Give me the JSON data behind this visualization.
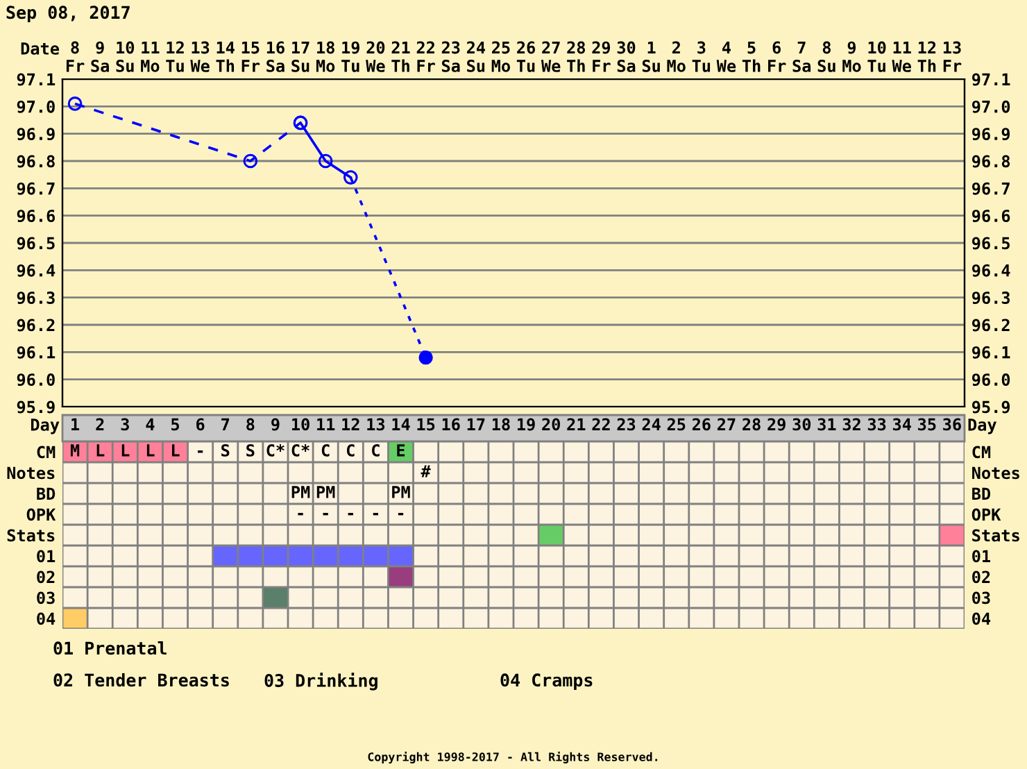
{
  "chart_data": [
    {
      "type": "line",
      "title": "Sep 08, 2017",
      "xlabel": "Date",
      "categories": [
        "8\nFr",
        "9\nSa",
        "10\nSu",
        "11\nMo",
        "12\nTu",
        "13\nWe",
        "14\nTh",
        "15\nFr",
        "16\nSa",
        "17\nSu",
        "18\nMo",
        "19\nTu",
        "20\nWe",
        "21\nTh",
        "22\nFr",
        "23\nSa",
        "24\nSu",
        "25\nMo",
        "26\nTu",
        "27\nWe",
        "28\nTh",
        "29\nFr",
        "30\nSa",
        "1\nSu",
        "2\nMo",
        "3\nTu",
        "4\nWe",
        "5\nTh",
        "6\nFr",
        "7\nSa",
        "8\nSu",
        "9\nMo",
        "10\nTu",
        "11\nWe",
        "12\nTh",
        "13\nFr"
      ],
      "series": [
        {
          "type": "line",
          "color": "#0000ff",
          "line_style": "dashed",
          "marker": "circle",
          "values": [
            97.01,
            null,
            null,
            null,
            null,
            null,
            null,
            96.8,
            null,
            96.94,
            null,
            null,
            null,
            null,
            null,
            null,
            null,
            null,
            null,
            null,
            null,
            null,
            null,
            null,
            null,
            null,
            null,
            null,
            null,
            null,
            null,
            null,
            null,
            null,
            null,
            null
          ]
        },
        {
          "type": "line",
          "color": "#0000ff",
          "line_style": "solid",
          "marker": "circle",
          "values": [
            null,
            null,
            null,
            null,
            null,
            null,
            null,
            null,
            null,
            96.94,
            96.8,
            96.74,
            null,
            null,
            null,
            null,
            null,
            null,
            null,
            null,
            null,
            null,
            null,
            null,
            null,
            null,
            null,
            null,
            null,
            null,
            null,
            null,
            null,
            null,
            null,
            null
          ]
        },
        {
          "type": "line",
          "color": "#0000ff",
          "line_style": "dotted",
          "marker": "none",
          "values": [
            null,
            null,
            null,
            null,
            null,
            null,
            null,
            null,
            null,
            null,
            null,
            96.74,
            null,
            null,
            96.08,
            null,
            null,
            null,
            null,
            null,
            null,
            null,
            null,
            null,
            null,
            null,
            null,
            null,
            null,
            null,
            null,
            null,
            null,
            null,
            null,
            null
          ]
        },
        {
          "type": "scatter",
          "color": "#0000ff",
          "marker": "circle",
          "values": [
            null,
            null,
            null,
            null,
            null,
            null,
            null,
            null,
            null,
            null,
            null,
            null,
            null,
            null,
            96.08,
            null,
            null,
            null,
            null,
            null,
            null,
            null,
            null,
            null,
            null,
            null,
            null,
            null,
            null,
            null,
            null,
            null,
            null,
            null,
            null,
            null
          ]
        }
      ],
      "ylim": [
        95.9,
        97.1
      ],
      "yticks": [
        {
          "value": 95.9,
          "label": "95.9"
        },
        {
          "value": 96.0,
          "label": "96.0"
        },
        {
          "value": 96.1,
          "label": "96.1"
        },
        {
          "value": 96.2,
          "label": "96.2"
        },
        {
          "value": 96.3,
          "label": "96.3"
        },
        {
          "value": 96.4,
          "label": "96.4"
        },
        {
          "value": 96.5,
          "label": "96.5"
        },
        {
          "value": 96.6,
          "label": "96.6"
        },
        {
          "value": 96.7,
          "label": "96.7"
        },
        {
          "value": 96.8,
          "label": "96.8"
        },
        {
          "value": 96.9,
          "label": "96.9"
        },
        {
          "value": 97.0,
          "label": "97.0"
        },
        {
          "value": 97.1,
          "label": "97.1"
        }
      ],
      "y2lim": [
        95.9,
        97.1
      ],
      "y2ticks": [
        {
          "value": 95.9,
          "label": "95.9"
        },
        {
          "value": 96.0,
          "label": "96.0"
        },
        {
          "value": 96.1,
          "label": "96.1"
        },
        {
          "value": 96.2,
          "label": "96.2"
        },
        {
          "value": 96.3,
          "label": "96.3"
        },
        {
          "value": 96.4,
          "label": "96.4"
        },
        {
          "value": 96.5,
          "label": "96.5"
        },
        {
          "value": 96.6,
          "label": "96.6"
        },
        {
          "value": 96.7,
          "label": "96.7"
        },
        {
          "value": 96.8,
          "label": "96.8"
        },
        {
          "value": 96.9,
          "label": "96.9"
        },
        {
          "value": 97.0,
          "label": "97.0"
        },
        {
          "value": 97.1,
          "label": "97.1"
        }
      ],
      "grid": true,
      "legend": false,
      "annotations": [
        "Copyright 1998-2017 - All Rights Reserved."
      ]
    },
    {
      "type": "heatmap",
      "xlabel": "Day",
      "cells": [
        [
          null,
          null,
          null,
          null,
          null,
          null,
          null,
          null,
          null,
          null,
          null,
          null,
          null,
          null,
          null,
          null,
          null,
          null,
          null,
          null,
          null,
          null,
          null,
          null,
          null,
          null,
          null,
          null,
          null,
          null,
          null,
          null,
          null,
          null,
          null,
          null
        ],
        [
          null,
          null,
          null,
          null,
          null,
          null,
          null,
          null,
          null,
          null,
          null,
          null,
          null,
          null,
          null,
          null,
          null,
          null,
          null,
          null,
          null,
          null,
          null,
          null,
          null,
          null,
          null,
          null,
          null,
          null,
          null,
          null,
          null,
          null,
          null,
          null
        ],
        [
          null,
          null,
          null,
          null,
          null,
          null,
          null,
          null,
          null,
          null,
          null,
          null,
          null,
          null,
          null,
          null,
          null,
          null,
          null,
          null,
          null,
          null,
          null,
          null,
          null,
          null,
          null,
          null,
          null,
          null,
          null,
          null,
          null,
          null,
          null,
          null
        ],
        [
          null,
          null,
          null,
          null,
          null,
          null,
          null,
          null,
          null,
          null,
          null,
          null,
          null,
          null,
          null,
          null,
          null,
          null,
          null,
          null,
          null,
          null,
          null,
          null,
          null,
          null,
          null,
          null,
          null,
          null,
          null,
          null,
          null,
          null,
          null,
          null
        ],
        [
          null,
          null,
          null,
          null,
          null,
          null,
          null,
          null,
          null,
          null,
          null,
          null,
          null,
          null,
          null,
          null,
          null,
          null,
          null,
          null,
          null,
          null,
          null,
          null,
          null,
          null,
          null,
          null,
          null,
          null,
          null,
          null,
          null,
          null,
          null,
          null
        ],
        [
          null,
          null,
          null,
          null,
          null,
          null,
          null,
          null,
          null,
          null,
          null,
          null,
          null,
          null,
          null,
          null,
          null,
          null,
          null,
          null,
          null,
          null,
          null,
          null,
          null,
          null,
          null,
          null,
          null,
          null,
          null,
          null,
          null,
          null,
          null,
          null
        ],
        [
          null,
          null,
          null,
          null,
          null,
          null,
          null,
          null,
          null,
          null,
          null,
          null,
          null,
          null,
          null,
          null,
          null,
          null,
          null,
          null,
          null,
          null,
          null,
          null,
          null,
          null,
          null,
          null,
          null,
          null,
          null,
          null,
          null,
          null,
          null,
          null
        ],
        [
          null,
          null,
          null,
          null,
          null,
          null,
          null,
          null,
          null,
          null,
          null,
          null,
          null,
          null,
          null,
          null,
          null,
          null,
          null,
          null,
          null,
          null,
          null,
          null,
          null,
          null,
          null,
          null,
          null,
          null,
          null,
          null,
          null,
          null,
          null,
          null
        ],
        [
          null,
          null,
          null,
          null,
          null,
          null,
          null,
          null,
          null,
          null,
          null,
          null,
          null,
          null,
          null,
          null,
          null,
          null,
          null,
          null,
          null,
          null,
          null,
          null,
          null,
          null,
          null,
          null,
          null,
          null,
          null,
          null,
          null,
          null,
          null,
          null
        ]
      ],
      "categories": [
        "1",
        "2",
        "3",
        "4",
        "5",
        "6",
        "7",
        "8",
        "9",
        "10",
        "11",
        "12",
        "13",
        "14",
        "15",
        "16",
        "17",
        "18",
        "19",
        "20",
        "21",
        "22",
        "23",
        "24",
        "25",
        "26",
        "27",
        "28",
        "29",
        "30",
        "31",
        "32",
        "33",
        "34",
        "35",
        "36"
      ],
      "y_categories": [
        "CM",
        "Notes",
        "BD",
        "OPK",
        "Stats",
        "01",
        "02",
        "03",
        "04"
      ],
      "y2_categories": [
        "CM",
        "Notes",
        "BD",
        "OPK",
        "Stats",
        "01",
        "02",
        "03",
        "04"
      ],
      "colors": [
        [
          "#ff8098",
          "#ff8098",
          "#ff8098",
          "#ff8098",
          "#ff8098",
          null,
          null,
          null,
          null,
          null,
          null,
          null,
          null,
          "#66cc66",
          null,
          null,
          null,
          null,
          null,
          null,
          null,
          null,
          null,
          null,
          null,
          null,
          null,
          null,
          null,
          null,
          null,
          null,
          null,
          null,
          null,
          null
        ],
        [
          null,
          null,
          null,
          null,
          null,
          null,
          null,
          null,
          null,
          null,
          null,
          null,
          null,
          null,
          null,
          null,
          null,
          null,
          null,
          null,
          null,
          null,
          null,
          null,
          null,
          null,
          null,
          null,
          null,
          null,
          null,
          null,
          null,
          null,
          null,
          null
        ],
        [
          null,
          null,
          null,
          null,
          null,
          null,
          null,
          null,
          null,
          null,
          null,
          null,
          null,
          null,
          null,
          null,
          null,
          null,
          null,
          null,
          null,
          null,
          null,
          null,
          null,
          null,
          null,
          null,
          null,
          null,
          null,
          null,
          null,
          null,
          null,
          null
        ],
        [
          null,
          null,
          null,
          null,
          null,
          null,
          null,
          null,
          null,
          null,
          null,
          null,
          null,
          null,
          null,
          null,
          null,
          null,
          null,
          null,
          null,
          null,
          null,
          null,
          null,
          null,
          null,
          null,
          null,
          null,
          null,
          null,
          null,
          null,
          null,
          null
        ],
        [
          null,
          null,
          null,
          null,
          null,
          null,
          null,
          null,
          null,
          null,
          null,
          null,
          null,
          null,
          null,
          null,
          null,
          null,
          null,
          "#66cc66",
          null,
          null,
          null,
          null,
          null,
          null,
          null,
          null,
          null,
          null,
          null,
          null,
          null,
          null,
          null,
          "#ff8098"
        ],
        [
          null,
          null,
          null,
          null,
          null,
          null,
          "#6666ff",
          "#6666ff",
          "#6666ff",
          "#6666ff",
          "#6666ff",
          "#6666ff",
          "#6666ff",
          "#6666ff",
          null,
          null,
          null,
          null,
          null,
          null,
          null,
          null,
          null,
          null,
          null,
          null,
          null,
          null,
          null,
          null,
          null,
          null,
          null,
          null,
          null,
          null
        ],
        [
          null,
          null,
          null,
          null,
          null,
          null,
          null,
          null,
          null,
          null,
          null,
          null,
          null,
          "#993d7f",
          null,
          null,
          null,
          null,
          null,
          null,
          null,
          null,
          null,
          null,
          null,
          null,
          null,
          null,
          null,
          null,
          null,
          null,
          null,
          null,
          null,
          null
        ],
        [
          null,
          null,
          null,
          null,
          null,
          null,
          null,
          null,
          "#5a7f6a",
          null,
          null,
          null,
          null,
          null,
          null,
          null,
          null,
          null,
          null,
          null,
          null,
          null,
          null,
          null,
          null,
          null,
          null,
          null,
          null,
          null,
          null,
          null,
          null,
          null,
          null,
          null
        ],
        [
          "#ffcc66",
          null,
          null,
          null,
          null,
          null,
          null,
          null,
          null,
          null,
          null,
          null,
          null,
          null,
          null,
          null,
          null,
          null,
          null,
          null,
          null,
          null,
          null,
          null,
          null,
          null,
          null,
          null,
          null,
          null,
          null,
          null,
          null,
          null,
          null,
          null
        ]
      ],
      "cell_labels": [
        [
          "M",
          "L",
          "L",
          "L",
          "L",
          "-",
          "S",
          "S",
          "C*",
          "C*",
          "C",
          "C",
          "C",
          "E",
          null,
          null,
          null,
          null,
          null,
          null,
          null,
          null,
          null,
          null,
          null,
          null,
          null,
          null,
          null,
          null,
          null,
          null,
          null,
          null,
          null,
          null
        ],
        [
          null,
          null,
          null,
          null,
          null,
          null,
          null,
          null,
          null,
          null,
          null,
          null,
          null,
          null,
          "#",
          null,
          null,
          null,
          null,
          null,
          null,
          null,
          null,
          null,
          null,
          null,
          null,
          null,
          null,
          null,
          null,
          null,
          null,
          null,
          null,
          null
        ],
        [
          null,
          null,
          null,
          null,
          null,
          null,
          null,
          null,
          null,
          "PM",
          "PM",
          null,
          null,
          "PM",
          null,
          null,
          null,
          null,
          null,
          null,
          null,
          null,
          null,
          null,
          null,
          null,
          null,
          null,
          null,
          null,
          null,
          null,
          null,
          null,
          null,
          null
        ],
        [
          null,
          null,
          null,
          null,
          null,
          null,
          null,
          null,
          null,
          "-",
          "-",
          "-",
          "-",
          "-",
          null,
          null,
          null,
          null,
          null,
          null,
          null,
          null,
          null,
          null,
          null,
          null,
          null,
          null,
          null,
          null,
          null,
          null,
          null,
          null,
          null,
          null
        ],
        [
          null,
          null,
          null,
          null,
          null,
          null,
          null,
          null,
          null,
          null,
          null,
          null,
          null,
          null,
          null,
          null,
          null,
          null,
          null,
          null,
          null,
          null,
          null,
          null,
          null,
          null,
          null,
          null,
          null,
          null,
          null,
          null,
          null,
          null,
          null,
          null
        ],
        [
          null,
          null,
          null,
          null,
          null,
          null,
          null,
          null,
          null,
          null,
          null,
          null,
          null,
          null,
          null,
          null,
          null,
          null,
          null,
          null,
          null,
          null,
          null,
          null,
          null,
          null,
          null,
          null,
          null,
          null,
          null,
          null,
          null,
          null,
          null,
          null
        ],
        [
          null,
          null,
          null,
          null,
          null,
          null,
          null,
          null,
          null,
          null,
          null,
          null,
          null,
          null,
          null,
          null,
          null,
          null,
          null,
          null,
          null,
          null,
          null,
          null,
          null,
          null,
          null,
          null,
          null,
          null,
          null,
          null,
          null,
          null,
          null,
          null
        ],
        [
          null,
          null,
          null,
          null,
          null,
          null,
          null,
          null,
          null,
          null,
          null,
          null,
          null,
          null,
          null,
          null,
          null,
          null,
          null,
          null,
          null,
          null,
          null,
          null,
          null,
          null,
          null,
          null,
          null,
          null,
          null,
          null,
          null,
          null,
          null,
          null
        ],
        [
          null,
          null,
          null,
          null,
          null,
          null,
          null,
          null,
          null,
          null,
          null,
          null,
          null,
          null,
          null,
          null,
          null,
          null,
          null,
          null,
          null,
          null,
          null,
          null,
          null,
          null,
          null,
          null,
          null,
          null,
          null,
          null,
          null,
          null,
          null,
          null
        ]
      ],
      "annotations": [
        "01 Prenatal",
        "02 Tender Breasts",
        "03 Drinking",
        "04 Cramps"
      ]
    }
  ]
}
